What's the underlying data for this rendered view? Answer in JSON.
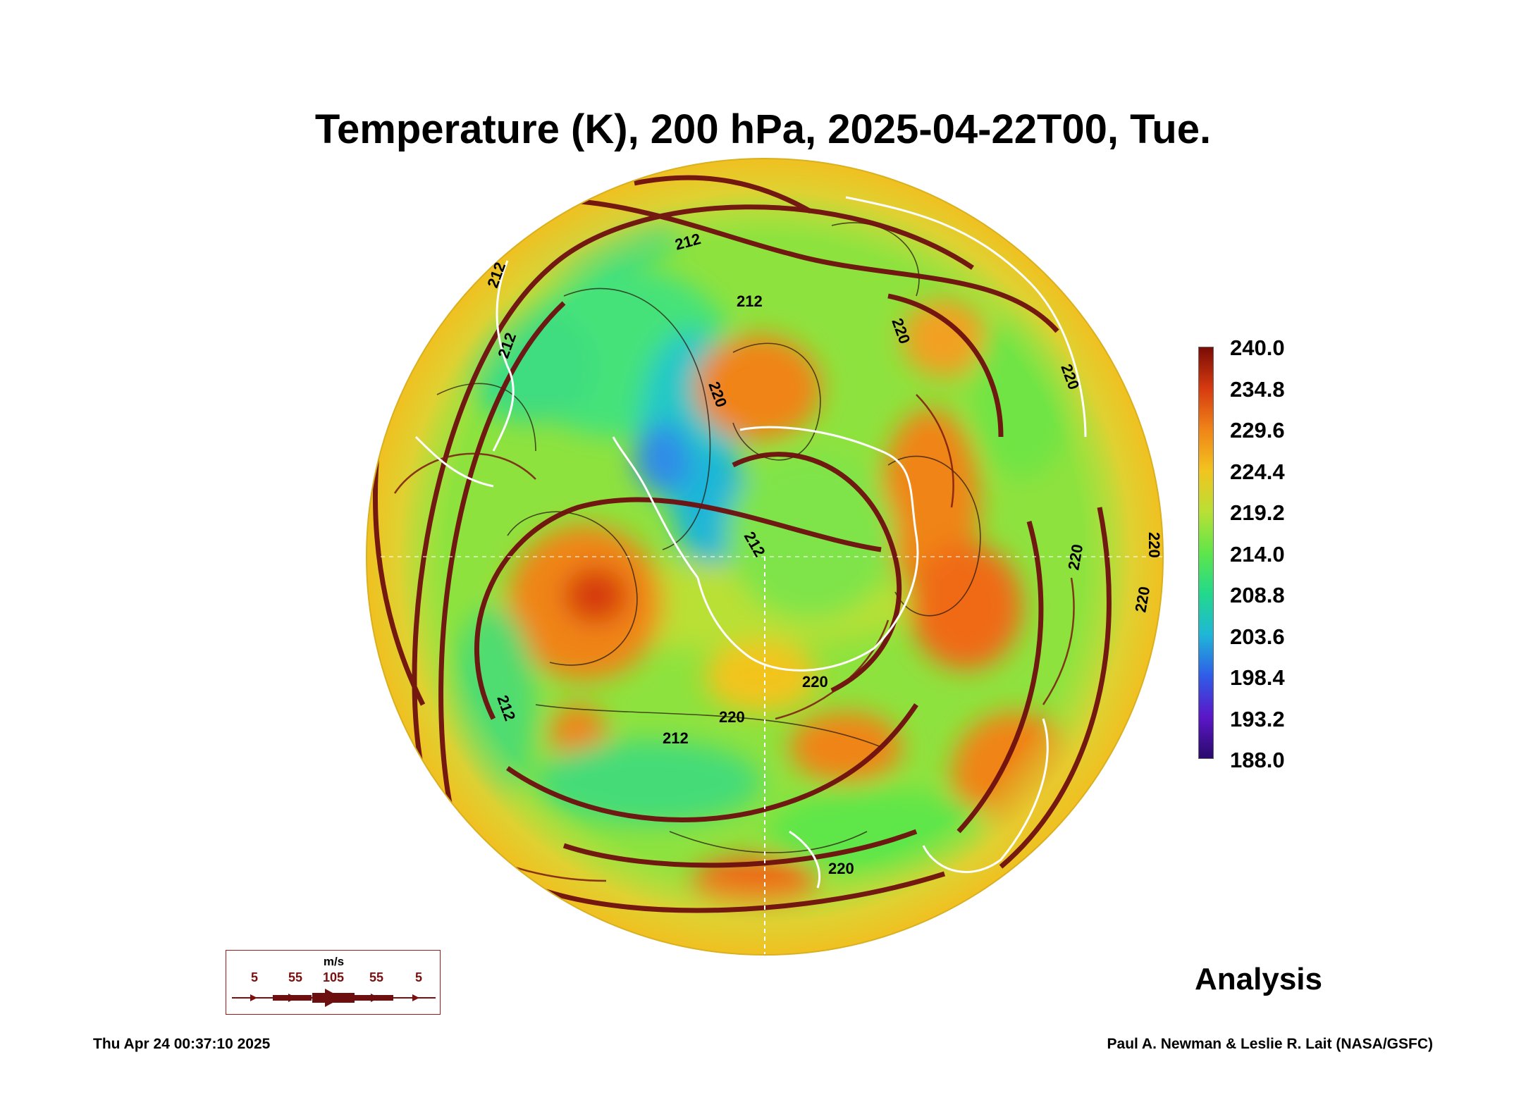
{
  "title": "Temperature (K), 200 hPa, 2025-04-22T00, Tue.",
  "colorbar": {
    "labels": [
      "240.0",
      "234.8",
      "229.6",
      "224.4",
      "219.2",
      "214.0",
      "208.8",
      "203.6",
      "198.4",
      "193.2",
      "188.0"
    ],
    "min": 188.0,
    "max": 240.0,
    "colors": [
      "#2a0a6b",
      "#5b16c7",
      "#2f5ce8",
      "#1fb6d8",
      "#22d98c",
      "#5fe64a",
      "#b9e035",
      "#f2c41f",
      "#f08418",
      "#d63b10",
      "#7a0b05"
    ]
  },
  "contour_labels": [
    "212",
    "212",
    "212",
    "212",
    "220",
    "220",
    "220",
    "220",
    "220",
    "220",
    "220",
    "220",
    "220",
    "212",
    "212",
    "212"
  ],
  "wind_key": {
    "unit": "m/s",
    "values": [
      "5",
      "55",
      "105",
      "55",
      "5"
    ]
  },
  "analysis_label": "Analysis",
  "footer": {
    "timestamp": "Thu Apr 24 00:37:10 2025",
    "credit": "Paul A. Newman & Leslie R. Lait (NASA/GSFC)"
  }
}
